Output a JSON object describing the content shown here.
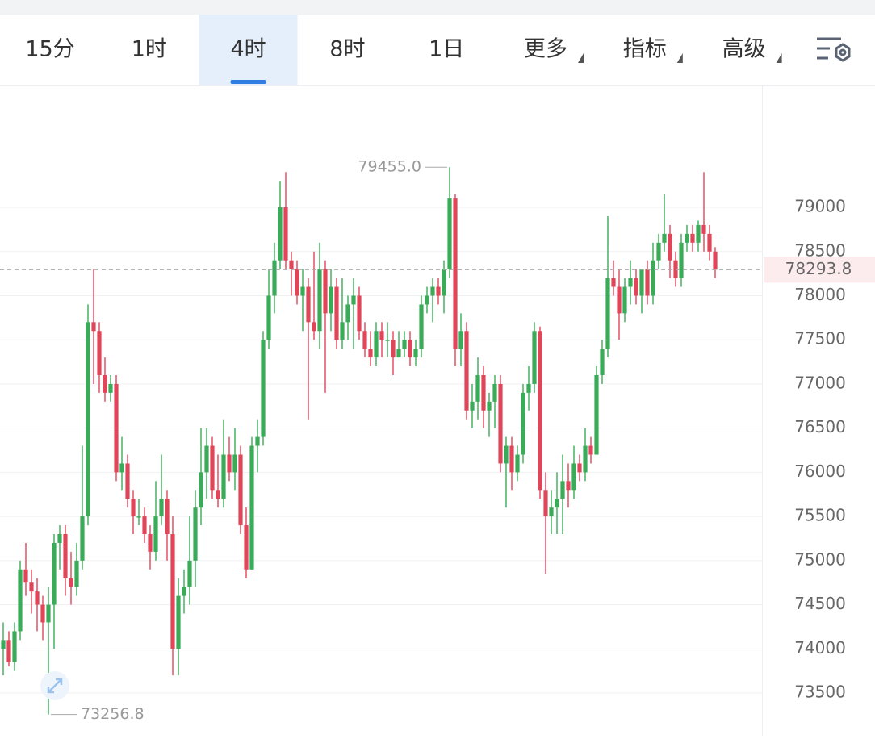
{
  "toolbar": {
    "tabs": [
      "15分",
      "1时",
      "4时",
      "8时",
      "1日",
      "更多",
      "指标",
      "高级"
    ],
    "active": 2,
    "dropdown_tabs": [
      5,
      6,
      7
    ]
  },
  "chart_data": {
    "type": "candlestick",
    "up_color": "#3aab58",
    "down_color": "#e0455a",
    "ylim": [
      73016,
      80389
    ],
    "yticks": [
      73500,
      74000,
      74500,
      75000,
      75500,
      76000,
      76500,
      77000,
      77500,
      78000,
      78500,
      79000
    ],
    "grid": true,
    "last_price": 78293.8,
    "annotations": [
      {
        "value": 79455,
        "label": "79455.0"
      },
      {
        "value": 73256.8,
        "label": "73256.8"
      }
    ],
    "candles": [
      [
        74000,
        74300,
        73700,
        74100
      ],
      [
        74100,
        74200,
        73800,
        73850
      ],
      [
        73850,
        74300,
        73750,
        74200
      ],
      [
        74200,
        75000,
        74100,
        74900
      ],
      [
        74900,
        75200,
        74600,
        74750
      ],
      [
        74750,
        74900,
        74400,
        74650
      ],
      [
        74650,
        74800,
        74200,
        74500
      ],
      [
        74500,
        74600,
        74100,
        74300
      ],
      [
        74300,
        74700,
        73256.8,
        74500
      ],
      [
        74500,
        75300,
        74000,
        75200
      ],
      [
        75200,
        75400,
        74900,
        75300
      ],
      [
        75300,
        75400,
        74600,
        74800
      ],
      [
        74800,
        75100,
        74500,
        74700
      ],
      [
        74700,
        75200,
        74600,
        75000
      ],
      [
        75000,
        76300,
        74900,
        75500
      ],
      [
        75500,
        77900,
        75400,
        77700
      ],
      [
        77700,
        78300,
        77000,
        77600
      ],
      [
        77600,
        77700,
        76900,
        77100
      ],
      [
        77100,
        77300,
        76800,
        76900
      ],
      [
        76900,
        77100,
        76800,
        77000
      ],
      [
        77000,
        77100,
        75900,
        76000
      ],
      [
        76000,
        76400,
        75800,
        76100
      ],
      [
        76100,
        76200,
        75600,
        75700
      ],
      [
        75700,
        75800,
        75300,
        75500
      ],
      [
        75500,
        75700,
        75400,
        75500
      ],
      [
        75500,
        75600,
        75200,
        75300
      ],
      [
        75300,
        75400,
        74900,
        75100
      ],
      [
        75100,
        75900,
        75000,
        75500
      ],
      [
        75500,
        76200,
        75400,
        75700
      ],
      [
        75700,
        75800,
        75000,
        75300
      ],
      [
        75300,
        75500,
        73700,
        74000
      ],
      [
        74000,
        74800,
        73700,
        74600
      ],
      [
        74600,
        74900,
        74400,
        74700
      ],
      [
        74700,
        75500,
        74500,
        75000
      ],
      [
        75000,
        75800,
        74700,
        75600
      ],
      [
        75600,
        76500,
        75400,
        76000
      ],
      [
        76000,
        76500,
        75700,
        76300
      ],
      [
        76300,
        76400,
        75700,
        75800
      ],
      [
        75800,
        76200,
        75600,
        75700
      ],
      [
        75700,
        76600,
        75600,
        76200
      ],
      [
        76200,
        76400,
        75900,
        76000
      ],
      [
        76000,
        76500,
        75800,
        76200
      ],
      [
        76200,
        76300,
        75300,
        75400
      ],
      [
        75400,
        75600,
        74800,
        74900
      ],
      [
        74900,
        76400,
        74900,
        76300
      ],
      [
        76300,
        76600,
        76000,
        76400
      ],
      [
        76400,
        77600,
        76300,
        77500
      ],
      [
        77500,
        78300,
        77400,
        78000
      ],
      [
        78000,
        78600,
        77800,
        78400
      ],
      [
        78400,
        79300,
        78300,
        79000
      ],
      [
        79000,
        79400,
        78300,
        78400
      ],
      [
        78400,
        78500,
        78000,
        78300
      ],
      [
        78300,
        78400,
        77900,
        78000
      ],
      [
        78000,
        78300,
        77600,
        78100
      ],
      [
        78100,
        78200,
        76600,
        77700
      ],
      [
        77700,
        78500,
        77500,
        77600
      ],
      [
        77600,
        78600,
        77400,
        78300
      ],
      [
        78300,
        78400,
        76900,
        77800
      ],
      [
        77800,
        78300,
        77600,
        78100
      ],
      [
        78100,
        78200,
        77400,
        77500
      ],
      [
        77500,
        78200,
        77400,
        77700
      ],
      [
        77700,
        78000,
        77500,
        77900
      ],
      [
        77900,
        78200,
        77400,
        78000
      ],
      [
        78000,
        78100,
        77500,
        77600
      ],
      [
        77600,
        77700,
        77300,
        77400
      ],
      [
        77400,
        77600,
        77200,
        77300
      ],
      [
        77300,
        77700,
        77200,
        77600
      ],
      [
        77600,
        77700,
        77300,
        77500
      ],
      [
        77500,
        77700,
        77300,
        77500
      ],
      [
        77500,
        77600,
        77100,
        77300
      ],
      [
        77300,
        77600,
        77300,
        77400
      ],
      [
        77400,
        77600,
        77300,
        77500
      ],
      [
        77500,
        77600,
        77200,
        77300
      ],
      [
        77300,
        77500,
        77200,
        77400
      ],
      [
        77400,
        78000,
        77300,
        77900
      ],
      [
        77900,
        78100,
        77800,
        78000
      ],
      [
        78000,
        78200,
        77700,
        78100
      ],
      [
        78100,
        78200,
        77900,
        78000
      ],
      [
        78000,
        78400,
        77800,
        78300
      ],
      [
        78300,
        79455,
        78200,
        79100
      ],
      [
        79100,
        79150,
        77200,
        77400
      ],
      [
        77400,
        77800,
        77200,
        77600
      ],
      [
        77600,
        77700,
        76600,
        76700
      ],
      [
        76700,
        77000,
        76500,
        76800
      ],
      [
        76800,
        77300,
        76600,
        77100
      ],
      [
        77100,
        77200,
        76500,
        76700
      ],
      [
        76700,
        76900,
        76400,
        76800
      ],
      [
        76800,
        77100,
        76500,
        77000
      ],
      [
        77000,
        77100,
        76000,
        76100
      ],
      [
        76100,
        76400,
        75600,
        76300
      ],
      [
        76300,
        76400,
        75800,
        76000
      ],
      [
        76000,
        76300,
        75900,
        76200
      ],
      [
        76200,
        77000,
        76100,
        76900
      ],
      [
        76900,
        77200,
        76700,
        77000
      ],
      [
        77000,
        77700,
        76900,
        77600
      ],
      [
        77600,
        77650,
        75700,
        75800
      ],
      [
        75800,
        76000,
        74850,
        75500
      ],
      [
        75500,
        75800,
        75300,
        75600
      ],
      [
        75600,
        76000,
        75300,
        75700
      ],
      [
        75700,
        76200,
        75300,
        75900
      ],
      [
        75900,
        76100,
        75600,
        75800
      ],
      [
        75800,
        76300,
        75700,
        76100
      ],
      [
        76100,
        76200,
        75900,
        76000
      ],
      [
        76000,
        76500,
        75900,
        76300
      ],
      [
        76300,
        76400,
        76100,
        76200
      ],
      [
        76200,
        77200,
        76200,
        77100
      ],
      [
        77100,
        77500,
        77000,
        77400
      ],
      [
        77400,
        78900,
        77300,
        78200
      ],
      [
        78200,
        78400,
        78000,
        78100
      ],
      [
        78100,
        78300,
        77500,
        77800
      ],
      [
        77800,
        78200,
        77700,
        78100
      ],
      [
        78100,
        78400,
        77900,
        78200
      ],
      [
        78200,
        78300,
        77900,
        78000
      ],
      [
        78000,
        78300,
        77800,
        78300
      ],
      [
        78300,
        78400,
        77900,
        78000
      ],
      [
        78000,
        78600,
        77900,
        78400
      ],
      [
        78400,
        78700,
        78300,
        78600
      ],
      [
        78600,
        79150,
        78500,
        78700
      ],
      [
        78700,
        78800,
        78200,
        78400
      ],
      [
        78400,
        78500,
        78100,
        78200
      ],
      [
        78200,
        78700,
        78100,
        78600
      ],
      [
        78600,
        78800,
        78500,
        78700
      ],
      [
        78700,
        78800,
        78500,
        78600
      ],
      [
        78600,
        78850,
        78500,
        78800
      ],
      [
        78800,
        79400,
        78500,
        78700
      ],
      [
        78700,
        78800,
        78400,
        78500
      ],
      [
        78500,
        78550,
        78200,
        78293.8
      ]
    ]
  }
}
